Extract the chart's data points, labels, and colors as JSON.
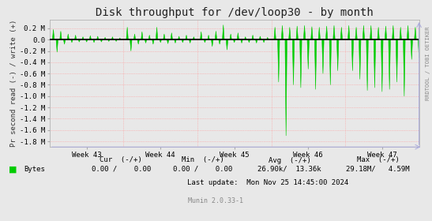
{
  "title": "Disk throughput for /dev/loop30 - by month",
  "ylabel": "Pr second read (-) / write (+)",
  "background_color": "#e8e8e8",
  "plot_bg_color": "#e8e8e8",
  "line_color": "#00cc00",
  "zero_line_color": "#000000",
  "grid_color": "#ff9999",
  "xlim": [
    0,
    100
  ],
  "ylim": [
    -1.9,
    0.35
  ],
  "yticks": [
    0.2,
    0.0,
    -0.2,
    -0.4,
    -0.6,
    -0.8,
    -1.0,
    -1.2,
    -1.4,
    -1.6,
    -1.8
  ],
  "ytick_labels": [
    "0.2 M",
    "0.0",
    "-0.2 M",
    "-0.4 M",
    "-0.6 M",
    "-0.8 M",
    "-1.0 M",
    "-1.2 M",
    "-1.4 M",
    "-1.6 M",
    "-1.8 M"
  ],
  "xtick_positions": [
    10,
    30,
    50,
    70,
    90
  ],
  "xtick_labels": [
    "Week 43",
    "Week 44",
    "Week 45",
    "Week 46",
    "Week 47"
  ],
  "legend_label": "Bytes",
  "legend_color": "#00cc00",
  "footer_cur": "Cur  (-/+)",
  "footer_min": "Min  (-/+)",
  "footer_avg": "Avg  (-/+)",
  "footer_max": "Max  (-/+)",
  "footer_cur_val": "0.00 /    0.00",
  "footer_min_val": "0.00 /    0.00",
  "footer_avg_val": "26.90k/  13.36k",
  "footer_max_val": "29.18M/   4.59M",
  "footer_last_update": "Last update:  Mon Nov 25 14:45:00 2024",
  "munin_version": "Munin 2.0.33-1",
  "rrdtool_label": "RRDTOOL / TOBI OETIKER",
  "title_fontsize": 10,
  "axis_fontsize": 6.5,
  "tick_fontsize": 6.5,
  "footer_fontsize": 6.5,
  "vgrid_positions": [
    20,
    40,
    60,
    80,
    100
  ],
  "week43_pos_spikes": [
    [
      1,
      0.18
    ],
    [
      3,
      0.15
    ],
    [
      5,
      0.1
    ],
    [
      7,
      0.08
    ],
    [
      9,
      0.05
    ],
    [
      11,
      0.07
    ],
    [
      13,
      0.06
    ],
    [
      15,
      0.04
    ],
    [
      17,
      0.05
    ],
    [
      19,
      0.03
    ]
  ],
  "week43_neg_spikes": [
    [
      2,
      -0.22
    ],
    [
      4,
      -0.08
    ],
    [
      6,
      -0.05
    ],
    [
      8,
      -0.04
    ],
    [
      10,
      -0.04
    ],
    [
      12,
      -0.05
    ],
    [
      14,
      -0.04
    ],
    [
      16,
      -0.03
    ],
    [
      18,
      -0.03
    ]
  ],
  "week44_pos_spikes": [
    [
      21,
      0.22
    ],
    [
      23,
      0.1
    ],
    [
      25,
      0.14
    ],
    [
      27,
      0.08
    ],
    [
      29,
      0.22
    ],
    [
      31,
      0.1
    ],
    [
      33,
      0.12
    ],
    [
      35,
      0.06
    ],
    [
      37,
      0.08
    ],
    [
      39,
      0.05
    ]
  ],
  "week44_neg_spikes": [
    [
      22,
      -0.2
    ],
    [
      24,
      -0.08
    ],
    [
      26,
      -0.06
    ],
    [
      28,
      -0.08
    ],
    [
      30,
      -0.05
    ],
    [
      32,
      -0.07
    ],
    [
      34,
      -0.06
    ],
    [
      36,
      -0.05
    ],
    [
      38,
      -0.06
    ]
  ],
  "week45_pos_spikes": [
    [
      41,
      0.14
    ],
    [
      43,
      0.08
    ],
    [
      45,
      0.15
    ],
    [
      47,
      0.26
    ],
    [
      49,
      0.1
    ],
    [
      51,
      0.12
    ],
    [
      53,
      0.05
    ],
    [
      55,
      0.08
    ],
    [
      57,
      0.06
    ],
    [
      59,
      0.04
    ]
  ],
  "week45_neg_spikes": [
    [
      42,
      -0.05
    ],
    [
      44,
      -0.12
    ],
    [
      46,
      -0.08
    ],
    [
      48,
      -0.18
    ],
    [
      50,
      -0.05
    ],
    [
      52,
      -0.06
    ],
    [
      54,
      -0.05
    ],
    [
      56,
      -0.06
    ],
    [
      58,
      -0.05
    ]
  ],
  "week46_pos_spikes": [
    [
      61,
      0.22
    ],
    [
      63,
      0.25
    ],
    [
      65,
      0.22
    ],
    [
      67,
      0.24
    ],
    [
      69,
      0.25
    ],
    [
      71,
      0.23
    ],
    [
      73,
      0.22
    ],
    [
      75,
      0.24
    ],
    [
      77,
      0.25
    ],
    [
      79,
      0.22
    ]
  ],
  "week46_neg_spikes": [
    [
      62,
      -0.75
    ],
    [
      64,
      -1.7
    ],
    [
      66,
      -0.8
    ],
    [
      68,
      -0.85
    ],
    [
      70,
      -0.52
    ],
    [
      72,
      -0.88
    ],
    [
      74,
      -0.6
    ],
    [
      76,
      -0.8
    ],
    [
      78,
      -0.55
    ]
  ],
  "week47_pos_spikes": [
    [
      81,
      0.25
    ],
    [
      83,
      0.22
    ],
    [
      85,
      0.25
    ],
    [
      87,
      0.25
    ],
    [
      89,
      0.22
    ],
    [
      91,
      0.24
    ],
    [
      93,
      0.25
    ],
    [
      95,
      0.22
    ],
    [
      97,
      0.25
    ],
    [
      99,
      0.22
    ]
  ],
  "week47_neg_spikes": [
    [
      82,
      -0.55
    ],
    [
      84,
      -0.7
    ],
    [
      86,
      -0.9
    ],
    [
      88,
      -0.85
    ],
    [
      90,
      -0.92
    ],
    [
      92,
      -0.88
    ],
    [
      94,
      -0.75
    ],
    [
      96,
      -1.0
    ],
    [
      98,
      -0.35
    ],
    [
      100,
      -0.32
    ]
  ]
}
